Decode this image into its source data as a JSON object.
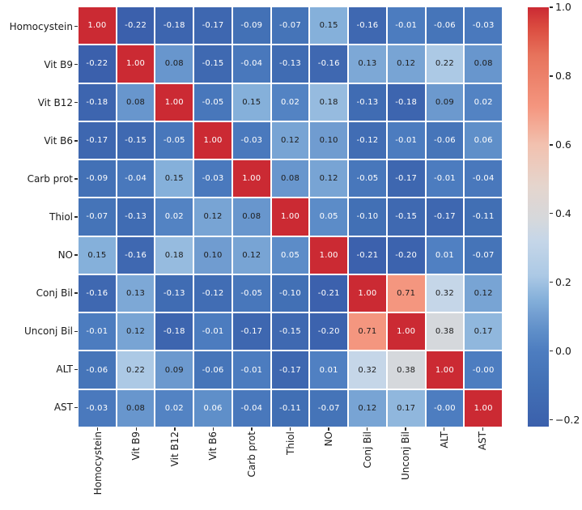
{
  "figure": {
    "background": "#ffffff"
  },
  "chart_data": {
    "type": "heatmap",
    "title": "",
    "xlabel": "",
    "ylabel": "",
    "grid": false,
    "legend_position": "right-colorbar",
    "categories": [
      "Homocystein",
      "Vit B9",
      "Vit B12",
      "Vit B6",
      "Carb prot",
      "Thiol",
      "NO",
      "Conj Bil",
      "Unconj Bil",
      "ALT",
      "AST"
    ],
    "matrix": [
      [
        "1.00",
        "-0.22",
        "-0.18",
        "-0.17",
        "-0.09",
        "-0.07",
        "0.15",
        "-0.16",
        "-0.01",
        "-0.06",
        "-0.03"
      ],
      [
        "-0.22",
        "1.00",
        "0.08",
        "-0.15",
        "-0.04",
        "-0.13",
        "-0.16",
        "0.13",
        "0.12",
        "0.22",
        "0.08"
      ],
      [
        "-0.18",
        "0.08",
        "1.00",
        "-0.05",
        "0.15",
        "0.02",
        "0.18",
        "-0.13",
        "-0.18",
        "0.09",
        "0.02"
      ],
      [
        "-0.17",
        "-0.15",
        "-0.05",
        "1.00",
        "-0.03",
        "0.12",
        "0.10",
        "-0.12",
        "-0.01",
        "-0.06",
        "0.06"
      ],
      [
        "-0.09",
        "-0.04",
        "0.15",
        "-0.03",
        "1.00",
        "0.08",
        "0.12",
        "-0.05",
        "-0.17",
        "-0.01",
        "-0.04"
      ],
      [
        "-0.07",
        "-0.13",
        "0.02",
        "0.12",
        "0.08",
        "1.00",
        "0.05",
        "-0.10",
        "-0.15",
        "-0.17",
        "-0.11"
      ],
      [
        "0.15",
        "-0.16",
        "0.18",
        "0.10",
        "0.12",
        "0.05",
        "1.00",
        "-0.21",
        "-0.20",
        "0.01",
        "-0.07"
      ],
      [
        "-0.16",
        "0.13",
        "-0.13",
        "-0.12",
        "-0.05",
        "-0.10",
        "-0.21",
        "1.00",
        "0.71",
        "0.32",
        "0.12"
      ],
      [
        "-0.01",
        "0.12",
        "-0.18",
        "-0.01",
        "-0.17",
        "-0.15",
        "-0.20",
        "0.71",
        "1.00",
        "0.38",
        "0.17"
      ],
      [
        "-0.06",
        "0.22",
        "0.09",
        "-0.06",
        "-0.01",
        "-0.17",
        "0.01",
        "0.32",
        "0.38",
        "1.00",
        "-0.00"
      ],
      [
        "-0.03",
        "0.08",
        "0.02",
        "0.06",
        "-0.04",
        "-0.11",
        "-0.07",
        "0.12",
        "0.17",
        "-0.00",
        "1.00"
      ]
    ],
    "colorbar": {
      "ticks": [
        "1.0",
        "0.8",
        "0.6",
        "0.4",
        "0.2",
        "0.0",
        "−0.2"
      ],
      "tick_values": [
        1.0,
        0.8,
        0.6,
        0.4,
        0.2,
        0.0,
        -0.2
      ],
      "vmin": -0.22,
      "vmax": 1.0
    },
    "colormap_anchors": [
      {
        "v": -0.22,
        "color": "#3b60ac"
      },
      {
        "v": -0.1,
        "color": "#4270b5"
      },
      {
        "v": 0.0,
        "color": "#4d7dc0"
      },
      {
        "v": 0.06,
        "color": "#5f8fc9"
      },
      {
        "v": 0.1,
        "color": "#709cd0"
      },
      {
        "v": 0.15,
        "color": "#85b0da"
      },
      {
        "v": 0.22,
        "color": "#acc9e5"
      },
      {
        "v": 0.32,
        "color": "#c5d6e8"
      },
      {
        "v": 0.38,
        "color": "#d5d8dc"
      },
      {
        "v": 0.48,
        "color": "#e5d5cd"
      },
      {
        "v": 0.6,
        "color": "#f2c1af"
      },
      {
        "v": 0.71,
        "color": "#f4967f"
      },
      {
        "v": 0.86,
        "color": "#e7735c"
      },
      {
        "v": 0.94,
        "color": "#db4c40"
      },
      {
        "v": 1.0,
        "color": "#cb2a33"
      }
    ],
    "annotation_text_colors": {
      "dark": "#1c1c1c",
      "light": "#ffffff"
    },
    "tick_mark_color": "#2b2b2b"
  }
}
